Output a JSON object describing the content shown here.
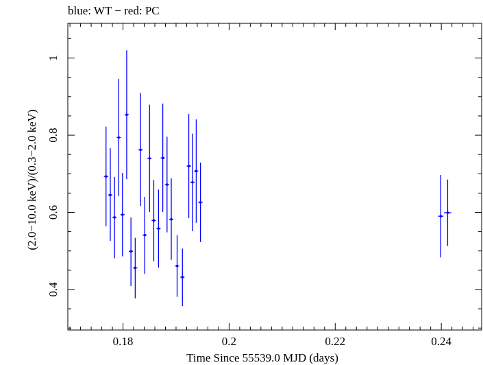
{
  "chart_data": {
    "type": "scatter",
    "title": "blue: WT − red: PC",
    "xlabel": "Time Since 55539.0 MJD (days)",
    "ylabel": "(2.0−10.0 keV)/(0.3−2.0 keV)",
    "xlim": [
      0.1696,
      0.2476
    ],
    "ylim": [
      0.295,
      1.09
    ],
    "x_ticks": [
      0.18,
      0.2,
      0.22,
      0.24
    ],
    "x_tick_labels": [
      "0.18",
      "0.2",
      "0.22",
      "0.24"
    ],
    "y_ticks": [
      0.4,
      0.6,
      0.8,
      1.0
    ],
    "y_tick_labels": [
      "0.4",
      "0.6",
      "0.8",
      "1"
    ],
    "grid": false,
    "colors": {
      "WT": "#0000ff",
      "PC": "#ff0000",
      "axes": "#000000"
    },
    "series": [
      {
        "name": "WT",
        "color": "#0000ff",
        "points": [
          {
            "x": 0.1768,
            "xerr": 0.0004,
            "y": 0.693,
            "ylo": 0.564,
            "yhi": 0.822
          },
          {
            "x": 0.1776,
            "xerr": 0.0004,
            "y": 0.645,
            "ylo": 0.526,
            "yhi": 0.766
          },
          {
            "x": 0.1784,
            "xerr": 0.0004,
            "y": 0.587,
            "ylo": 0.481,
            "yhi": 0.692
          },
          {
            "x": 0.1792,
            "xerr": 0.0004,
            "y": 0.794,
            "ylo": 0.642,
            "yhi": 0.946
          },
          {
            "x": 0.1799,
            "xerr": 0.0004,
            "y": 0.594,
            "ylo": 0.486,
            "yhi": 0.702
          },
          {
            "x": 0.1807,
            "xerr": 0.0004,
            "y": 0.853,
            "ylo": 0.686,
            "yhi": 1.02
          },
          {
            "x": 0.1815,
            "xerr": 0.0004,
            "y": 0.499,
            "ylo": 0.409,
            "yhi": 0.587
          },
          {
            "x": 0.1823,
            "xerr": 0.0004,
            "y": 0.456,
            "ylo": 0.377,
            "yhi": 0.534
          },
          {
            "x": 0.1833,
            "xerr": 0.0004,
            "y": 0.762,
            "ylo": 0.617,
            "yhi": 0.909
          },
          {
            "x": 0.1841,
            "xerr": 0.0004,
            "y": 0.541,
            "ylo": 0.441,
            "yhi": 0.64
          },
          {
            "x": 0.185,
            "xerr": 0.0004,
            "y": 0.74,
            "ylo": 0.601,
            "yhi": 0.879
          },
          {
            "x": 0.1858,
            "xerr": 0.0004,
            "y": 0.579,
            "ylo": 0.473,
            "yhi": 0.684
          },
          {
            "x": 0.1867,
            "xerr": 0.0004,
            "y": 0.558,
            "ylo": 0.457,
            "yhi": 0.659
          },
          {
            "x": 0.1875,
            "xerr": 0.0004,
            "y": 0.741,
            "ylo": 0.601,
            "yhi": 0.882
          },
          {
            "x": 0.1883,
            "xerr": 0.0004,
            "y": 0.672,
            "ylo": 0.548,
            "yhi": 0.796
          },
          {
            "x": 0.1891,
            "xerr": 0.0004,
            "y": 0.582,
            "ylo": 0.477,
            "yhi": 0.688
          },
          {
            "x": 0.1902,
            "xerr": 0.0004,
            "y": 0.461,
            "ylo": 0.381,
            "yhi": 0.541
          },
          {
            "x": 0.1912,
            "xerr": 0.0004,
            "y": 0.432,
            "ylo": 0.357,
            "yhi": 0.506
          },
          {
            "x": 0.1924,
            "xerr": 0.0004,
            "y": 0.72,
            "ylo": 0.585,
            "yhi": 0.855
          },
          {
            "x": 0.1931,
            "xerr": 0.0004,
            "y": 0.678,
            "ylo": 0.551,
            "yhi": 0.804
          },
          {
            "x": 0.1938,
            "xerr": 0.0004,
            "y": 0.707,
            "ylo": 0.573,
            "yhi": 0.841
          },
          {
            "x": 0.1946,
            "xerr": 0.0004,
            "y": 0.626,
            "ylo": 0.523,
            "yhi": 0.729
          },
          {
            "x": 0.2399,
            "xerr": 0.0005,
            "y": 0.59,
            "ylo": 0.483,
            "yhi": 0.697
          },
          {
            "x": 0.2412,
            "xerr": 0.0007,
            "y": 0.599,
            "ylo": 0.513,
            "yhi": 0.685
          }
        ]
      },
      {
        "name": "PC",
        "color": "#ff0000",
        "points": []
      }
    ]
  }
}
